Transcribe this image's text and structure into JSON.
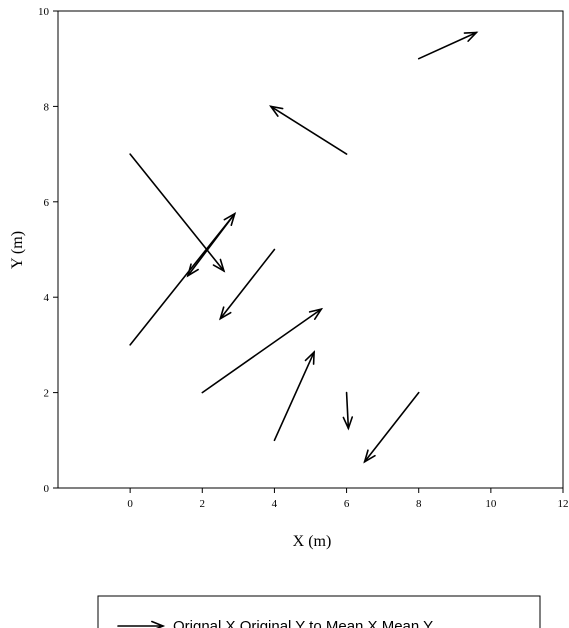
{
  "chart_data": {
    "type": "quiver",
    "xlabel": "X (m)",
    "ylabel": "Y (m)",
    "xlim": [
      -2,
      12
    ],
    "ylim": [
      0,
      10
    ],
    "xticks": [
      0,
      2,
      4,
      6,
      8,
      10,
      12
    ],
    "yticks": [
      0,
      2,
      4,
      6,
      8,
      10
    ],
    "grid": false,
    "legend": {
      "position": "bottom",
      "label": "Orignal X,Original Y to Mean X,Mean Y"
    },
    "arrows": [
      {
        "x": 0,
        "y": 7,
        "x_end": 2.6,
        "y_end": 4.55
      },
      {
        "x": 0,
        "y": 3,
        "x_end": 2.9,
        "y_end": 5.75
      },
      {
        "x": 2.9,
        "y": 5.75,
        "x_end": 1.6,
        "y_end": 4.45
      },
      {
        "x": 4,
        "y": 5,
        "x_end": 2.5,
        "y_end": 3.55
      },
      {
        "x": 6,
        "y": 7,
        "x_end": 3.9,
        "y_end": 8
      },
      {
        "x": 8,
        "y": 9,
        "x_end": 9.6,
        "y_end": 9.55
      },
      {
        "x": 2,
        "y": 2,
        "x_end": 5.3,
        "y_end": 3.75
      },
      {
        "x": 4,
        "y": 1,
        "x_end": 5.1,
        "y_end": 2.85
      },
      {
        "x": 6,
        "y": 2,
        "x_end": 6.05,
        "y_end": 1.25
      },
      {
        "x": 8,
        "y": 2,
        "x_end": 6.5,
        "y_end": 0.55
      }
    ]
  }
}
